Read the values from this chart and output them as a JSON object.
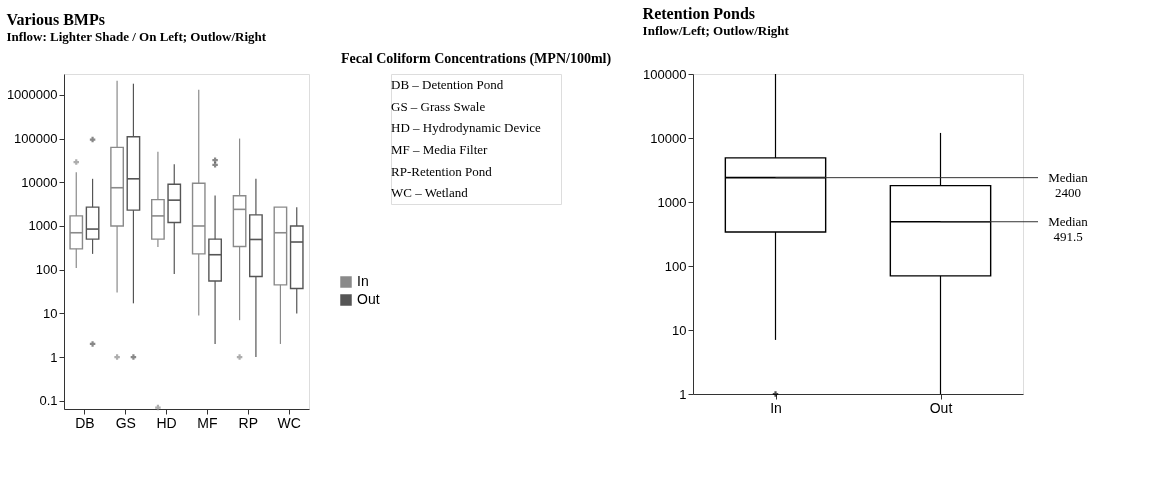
{
  "chart_data": [
    {
      "type": "box",
      "title": "Various BMPs",
      "subtitle": "Inflow: Lighter Shade / On Left; Outlow/Right",
      "annotations": [
        "Fecal Coliform Concentrations (MPN/100ml)",
        "DB – Detention Pond",
        "GS – Grass Swale",
        "HD – Hydrodynamic Device",
        "MF – Media Filter",
        "RP-Retention Pond",
        "WC – Wetland"
      ],
      "categories": [
        "DB",
        "GS",
        "HD",
        "MF",
        "RP",
        "WC"
      ],
      "series": [
        {
          "name": "In",
          "color": "#8a8a8a",
          "boxes": [
            {
              "low": 110,
              "q1": 300,
              "median": 700,
              "q3": 1700,
              "high": 17000,
              "outliers": [
                29000
              ]
            },
            {
              "low": 30,
              "q1": 1000,
              "median": 7500,
              "q3": 63000,
              "high": 2100000,
              "outliers": [
                1
              ]
            },
            {
              "low": 330,
              "q1": 500,
              "median": 1700,
              "q3": 4000,
              "high": 50000,
              "outliers": [
                0.07
              ]
            },
            {
              "low": 9,
              "q1": 230,
              "median": 1000,
              "q3": 9500,
              "high": 1300000
            },
            {
              "low": 7,
              "q1": 340,
              "median": 2400,
              "q3": 4900,
              "high": 100000,
              "outliers": [
                1
              ]
            },
            {
              "low": 2,
              "q1": 45,
              "median": 700,
              "q3": 2700,
              "high": 2700
            }
          ]
        },
        {
          "name": "Out",
          "color": "#555555",
          "boxes": [
            {
              "low": 230,
              "q1": 500,
              "median": 850,
              "q3": 2700,
              "high": 12000,
              "outliers": [
                95000,
                2
              ]
            },
            {
              "low": 17,
              "q1": 2300,
              "median": 12000,
              "q3": 110000,
              "high": 1800000,
              "outliers": [
                1
              ]
            },
            {
              "low": 80,
              "q1": 1200,
              "median": 3900,
              "q3": 9000,
              "high": 26000
            },
            {
              "low": 2,
              "q1": 55,
              "median": 220,
              "q3": 500,
              "high": 5000,
              "outliers": [
                32000,
                25000
              ]
            },
            {
              "low": 1,
              "q1": 70,
              "median": 491.5,
              "q3": 1800,
              "high": 12000
            },
            {
              "low": 10,
              "q1": 37,
              "median": 430,
              "q3": 1000,
              "high": 2700
            }
          ]
        }
      ],
      "ylim": [
        0.065,
        3000000
      ],
      "yticks": [
        0.1,
        1,
        10,
        100,
        1000,
        10000,
        100000,
        1000000
      ],
      "log": true,
      "legend": "right"
    },
    {
      "type": "box",
      "title": "Retention Ponds",
      "subtitle": "Inflow/Left; Outlow/Right",
      "categories": [
        "In",
        "Out"
      ],
      "boxes": [
        {
          "low": 7,
          "q1": 340,
          "median": 2400,
          "q3": 4900,
          "high": 100000,
          "outliers": [
            1
          ]
        },
        {
          "low": 1,
          "q1": 70,
          "median": 491.5,
          "q3": 1800,
          "high": 12000
        }
      ],
      "ylim": [
        1,
        100000
      ],
      "yticks": [
        1,
        10,
        100,
        1000,
        10000,
        100000
      ],
      "log": true,
      "annotations": [
        {
          "text": "Median 2400",
          "x": "In",
          "y": 2400
        },
        {
          "text": "Median 491.5",
          "x": "Out",
          "y": 491.5
        }
      ]
    }
  ]
}
